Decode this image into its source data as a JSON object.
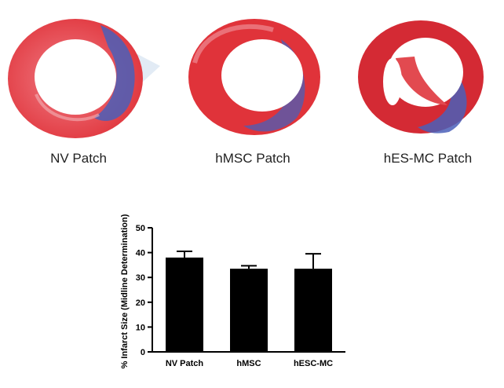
{
  "panels": [
    {
      "caption": "NV Patch"
    },
    {
      "caption": "hMSC Patch"
    },
    {
      "caption": "hES-MC Patch"
    }
  ],
  "colors": {
    "tissue_red": "#e0333a",
    "tissue_blue": "#4a5fb8",
    "bar_fill": "#000000"
  },
  "chart_data": {
    "type": "bar",
    "categories": [
      "NV Patch",
      "hMSC",
      "hESC-MC"
    ],
    "values": [
      38,
      33.5,
      33.5
    ],
    "errors": [
      2.5,
      1.2,
      6
    ],
    "title": "",
    "xlabel": "",
    "ylabel": "% Infarct Size (Midline Determination)",
    "ylim": [
      0,
      50
    ],
    "yticks": [
      0,
      10,
      20,
      30,
      40,
      50
    ],
    "grid": false
  }
}
